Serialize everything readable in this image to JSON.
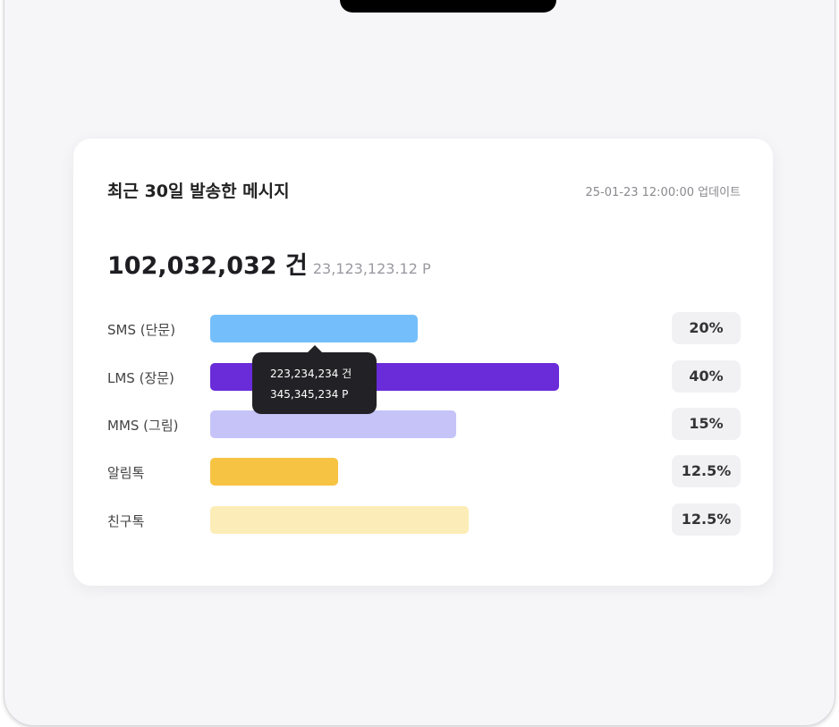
{
  "card": {
    "title": "최근 30일 발송한 메시지",
    "updated": "25-01-23 12:00:00 업데이트",
    "total_count": "102,032,032 건",
    "total_points": "23,123,123.12 P",
    "rows": [
      {
        "label": "SMS (단문)",
        "share": "20%"
      },
      {
        "label": "LMS (장문)",
        "share": "40%"
      },
      {
        "label": "MMS (그림)",
        "share": "15%"
      },
      {
        "label": "알림톡",
        "share": "12.5%"
      },
      {
        "label": "친구톡",
        "share": "12.5%"
      }
    ],
    "tooltip": {
      "count": "223,234,234 건",
      "points": "345,345,234 P"
    }
  }
}
